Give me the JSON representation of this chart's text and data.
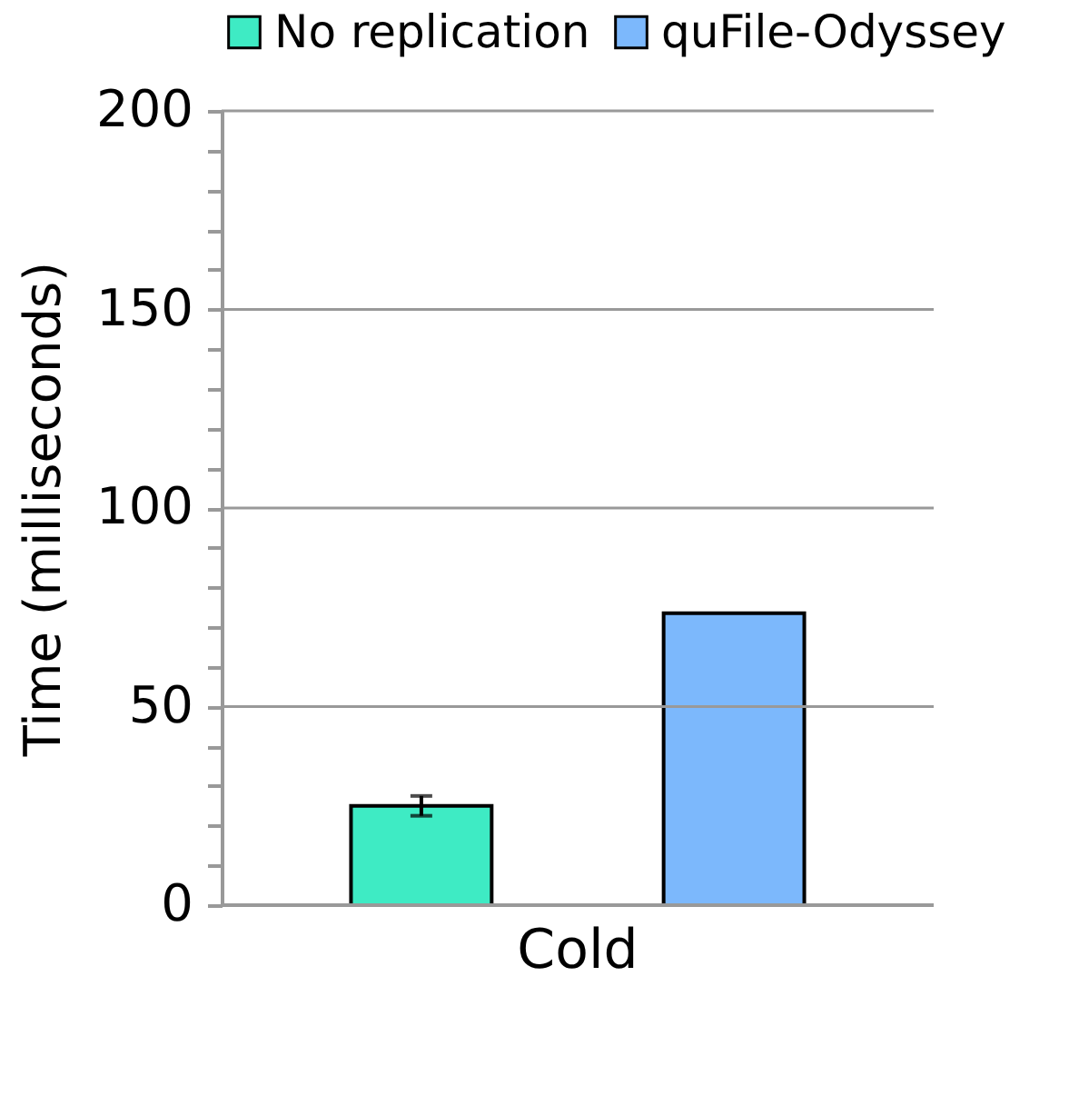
{
  "chart_data": {
    "type": "bar",
    "ylabel": "Time (milliseconds)",
    "categories": [
      "Cold"
    ],
    "series": [
      {
        "name": "No replication",
        "color": "#3eebc4",
        "values": [
          25
        ],
        "errors": [
          2.5
        ]
      },
      {
        "name": "quFile-Odyssey",
        "color": "#7cb8fc",
        "values": [
          73.5
        ],
        "errors": [
          null
        ]
      }
    ],
    "ylim": [
      0,
      200
    ],
    "yticks": [
      0,
      {
        "value": 10,
        "label": null
      },
      {
        "value": 20,
        "label": null
      },
      {
        "value": 30,
        "label": null
      },
      {
        "value": 40,
        "label": null
      },
      50,
      {
        "value": 60,
        "label": null
      },
      {
        "value": 70,
        "label": null
      },
      {
        "value": 80,
        "label": null
      },
      {
        "value": 90,
        "label": null
      },
      100,
      {
        "value": 110,
        "label": null
      },
      {
        "value": 120,
        "label": null
      },
      {
        "value": 130,
        "label": null
      },
      {
        "value": 140,
        "label": null
      },
      150,
      {
        "value": 160,
        "label": null
      },
      {
        "value": 170,
        "label": null
      },
      {
        "value": 180,
        "label": null
      },
      {
        "value": 190,
        "label": null
      },
      200
    ],
    "grid": "y",
    "legend": "top"
  }
}
